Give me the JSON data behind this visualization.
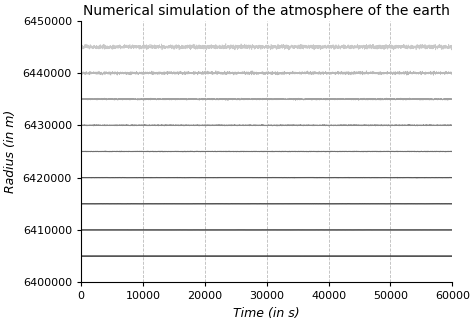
{
  "title": "Numerical simulation of the atmosphere of the earth",
  "xlabel": "Time (in s)",
  "ylabel": "Radius (in m)",
  "xlim": [
    0,
    60000
  ],
  "ylim": [
    6400000,
    6450000
  ],
  "xticks": [
    0,
    10000,
    20000,
    30000,
    40000,
    50000,
    60000
  ],
  "yticks": [
    6400000,
    6410000,
    6420000,
    6430000,
    6440000,
    6450000
  ],
  "lines": [
    {
      "y_center": 6445000,
      "color": "#c8c8c8",
      "lw": 0.5,
      "noise_scale": 300,
      "freq": 0.5
    },
    {
      "y_center": 6440000,
      "color": "#b8b8b8",
      "lw": 0.5,
      "noise_scale": 200,
      "freq": 0.4
    },
    {
      "y_center": 6435000,
      "color": "#a0a0a0",
      "lw": 0.6,
      "noise_scale": 100,
      "freq": 0.3
    },
    {
      "y_center": 6430000,
      "color": "#888888",
      "lw": 0.7,
      "noise_scale": 50,
      "freq": 0.2
    },
    {
      "y_center": 6425000,
      "color": "#707070",
      "lw": 0.8,
      "noise_scale": 20,
      "freq": 0.1
    },
    {
      "y_center": 6420000,
      "color": "#585858",
      "lw": 0.9,
      "noise_scale": 10,
      "freq": 0.05
    },
    {
      "y_center": 6415000,
      "color": "#484848",
      "lw": 1.0,
      "noise_scale": 5,
      "freq": 0.02
    },
    {
      "y_center": 6410000,
      "color": "#383838",
      "lw": 1.0,
      "noise_scale": 3,
      "freq": 0.01
    },
    {
      "y_center": 6405000,
      "color": "#282828",
      "lw": 1.0,
      "noise_scale": 1,
      "freq": 0.005
    }
  ],
  "n_points": 8000,
  "grid_color": "#bbbbbb",
  "bg_color": "#ffffff",
  "title_fontsize": 10,
  "label_fontsize": 9,
  "tick_fontsize": 8
}
